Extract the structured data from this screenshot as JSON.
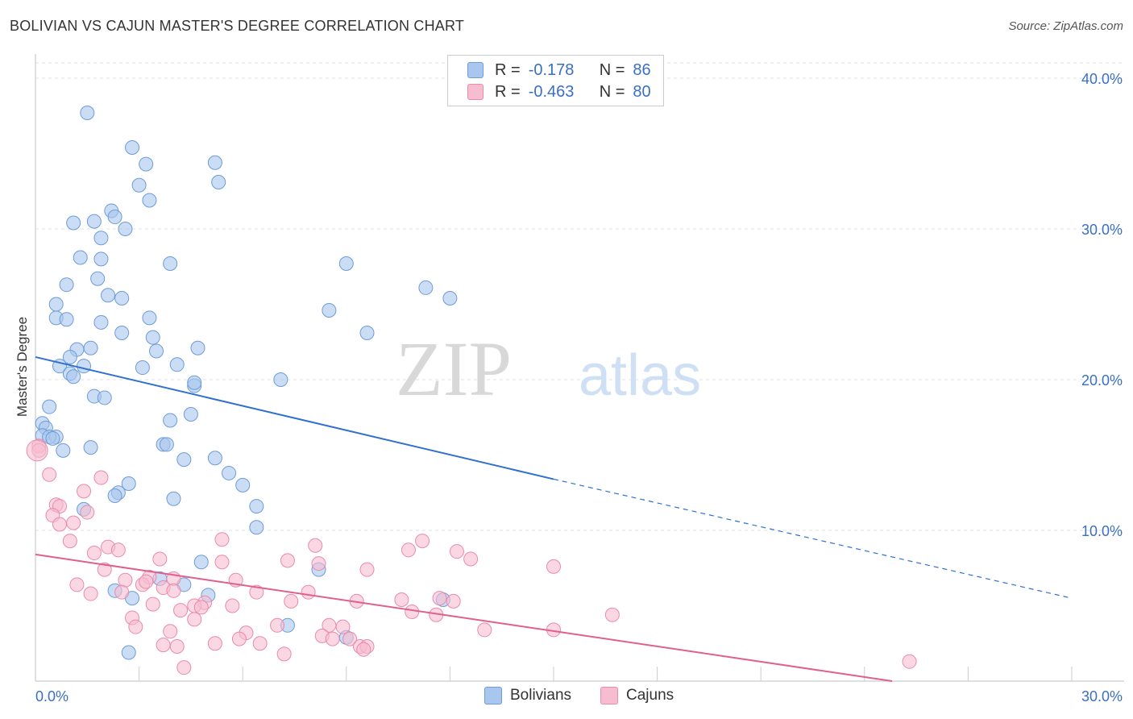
{
  "header": {
    "title": "BOLIVIAN VS CAJUN MASTER'S DEGREE CORRELATION CHART",
    "source": "Source: ZipAtlas.com"
  },
  "legend": {
    "r_label": "R =",
    "n_label": "N =",
    "bolivians": {
      "r": "-0.178",
      "n": "86"
    },
    "cajuns": {
      "r": "-0.463",
      "n": "80"
    }
  },
  "bottom_legend": {
    "bolivians": "Bolivians",
    "cajuns": "Cajuns"
  },
  "watermark": {
    "zip": "ZIP",
    "atlas": "atlas"
  },
  "colors": {
    "bolivians_fill": "#a9c7ee",
    "bolivians_stroke": "#6d9cd8",
    "bolivians_line": "#2f70d0",
    "cajuns_fill": "#f6bcd0",
    "cajuns_stroke": "#e98bab",
    "cajuns_line": "#e0608c",
    "tick_label": "#3a6fc4",
    "grid": "#e0e0e0"
  },
  "chart_data": {
    "type": "scatter",
    "title": "BOLIVIAN VS CAJUN MASTER'S DEGREE CORRELATION CHART",
    "xlabel": "",
    "ylabel": "Master's Degree",
    "xlim": [
      0,
      30
    ],
    "ylim": [
      0,
      40
    ],
    "x_tick_labels": [
      "0.0%",
      "30.0%"
    ],
    "y_ticks": [
      10,
      20,
      30,
      40
    ],
    "y_tick_labels": [
      "10.0%",
      "20.0%",
      "30.0%",
      "40.0%"
    ],
    "grid": true,
    "legend_placement": "top-center",
    "series": [
      {
        "name": "Bolivians",
        "trend": {
          "x": [
            0,
            15
          ],
          "y": [
            21.5,
            13.4
          ],
          "dashed_to": [
            30,
            5.5
          ]
        },
        "points": [
          [
            1.5,
            37.7
          ],
          [
            2.8,
            35.4
          ],
          [
            3.2,
            34.3
          ],
          [
            5.2,
            34.4
          ],
          [
            3.0,
            32.9
          ],
          [
            5.3,
            33.1
          ],
          [
            3.3,
            31.9
          ],
          [
            2.2,
            31.2
          ],
          [
            1.1,
            30.4
          ],
          [
            1.7,
            30.5
          ],
          [
            2.3,
            30.8
          ],
          [
            2.6,
            30.0
          ],
          [
            1.3,
            28.1
          ],
          [
            1.9,
            29.4
          ],
          [
            1.9,
            28.0
          ],
          [
            3.9,
            27.7
          ],
          [
            9.0,
            27.7
          ],
          [
            0.9,
            26.3
          ],
          [
            1.8,
            26.7
          ],
          [
            2.1,
            25.6
          ],
          [
            2.5,
            25.4
          ],
          [
            0.6,
            25.0
          ],
          [
            11.3,
            26.1
          ],
          [
            12.0,
            25.4
          ],
          [
            0.6,
            24.1
          ],
          [
            0.9,
            24.0
          ],
          [
            1.9,
            23.8
          ],
          [
            3.3,
            24.1
          ],
          [
            8.5,
            24.6
          ],
          [
            2.5,
            23.1
          ],
          [
            3.4,
            22.8
          ],
          [
            9.6,
            23.1
          ],
          [
            1.2,
            22.0
          ],
          [
            1.6,
            22.1
          ],
          [
            3.5,
            21.9
          ],
          [
            4.7,
            22.1
          ],
          [
            1.0,
            21.5
          ],
          [
            0.7,
            20.9
          ],
          [
            1.4,
            20.9
          ],
          [
            4.1,
            21.0
          ],
          [
            3.1,
            20.8
          ],
          [
            1.0,
            20.4
          ],
          [
            1.1,
            20.2
          ],
          [
            4.6,
            19.6
          ],
          [
            4.6,
            19.8
          ],
          [
            7.1,
            20.0
          ],
          [
            1.7,
            18.9
          ],
          [
            2.0,
            18.8
          ],
          [
            0.4,
            18.2
          ],
          [
            4.5,
            17.7
          ],
          [
            3.9,
            17.3
          ],
          [
            0.2,
            17.1
          ],
          [
            0.3,
            16.8
          ],
          [
            0.2,
            16.3
          ],
          [
            0.6,
            16.2
          ],
          [
            0.4,
            16.2
          ],
          [
            0.5,
            16.1
          ],
          [
            3.7,
            15.7
          ],
          [
            3.8,
            15.7
          ],
          [
            1.6,
            15.5
          ],
          [
            0.8,
            15.3
          ],
          [
            4.3,
            14.7
          ],
          [
            5.2,
            14.8
          ],
          [
            5.6,
            13.8
          ],
          [
            6.0,
            13.0
          ],
          [
            2.7,
            13.1
          ],
          [
            2.4,
            12.5
          ],
          [
            2.3,
            12.3
          ],
          [
            4.0,
            12.1
          ],
          [
            6.4,
            11.6
          ],
          [
            1.4,
            11.4
          ],
          [
            6.4,
            10.2
          ],
          [
            4.8,
            7.9
          ],
          [
            8.2,
            7.4
          ],
          [
            3.6,
            6.8
          ],
          [
            4.3,
            6.4
          ],
          [
            2.3,
            6.0
          ],
          [
            2.8,
            5.5
          ],
          [
            5.0,
            5.7
          ],
          [
            11.8,
            5.4
          ],
          [
            7.3,
            3.7
          ],
          [
            9.0,
            2.9
          ],
          [
            2.7,
            1.9
          ]
        ]
      },
      {
        "name": "Cajuns",
        "trend": {
          "x": [
            0,
            24.8
          ],
          "y": [
            8.4,
            0
          ]
        },
        "points": [
          [
            0.1,
            15.6
          ],
          [
            0.1,
            15.3
          ],
          [
            0.4,
            13.7
          ],
          [
            1.9,
            13.5
          ],
          [
            1.4,
            12.6
          ],
          [
            0.6,
            11.7
          ],
          [
            0.7,
            11.6
          ],
          [
            1.5,
            11.2
          ],
          [
            0.5,
            11.0
          ],
          [
            0.7,
            10.4
          ],
          [
            1.1,
            10.5
          ],
          [
            1.0,
            9.3
          ],
          [
            5.4,
            9.4
          ],
          [
            8.1,
            9.0
          ],
          [
            11.2,
            9.3
          ],
          [
            2.1,
            8.9
          ],
          [
            2.4,
            8.7
          ],
          [
            1.7,
            8.5
          ],
          [
            10.8,
            8.7
          ],
          [
            12.2,
            8.6
          ],
          [
            12.6,
            8.1
          ],
          [
            3.6,
            8.1
          ],
          [
            5.4,
            7.9
          ],
          [
            7.3,
            8.0
          ],
          [
            15.0,
            7.6
          ],
          [
            2.0,
            7.4
          ],
          [
            9.6,
            7.4
          ],
          [
            8.2,
            7.8
          ],
          [
            3.3,
            6.9
          ],
          [
            2.6,
            6.7
          ],
          [
            4.0,
            6.8
          ],
          [
            5.8,
            6.7
          ],
          [
            3.1,
            6.4
          ],
          [
            3.2,
            6.6
          ],
          [
            1.2,
            6.4
          ],
          [
            1.6,
            5.8
          ],
          [
            2.5,
            5.9
          ],
          [
            3.7,
            6.2
          ],
          [
            4.0,
            6.0
          ],
          [
            6.4,
            5.9
          ],
          [
            7.9,
            5.9
          ],
          [
            10.6,
            5.4
          ],
          [
            11.7,
            5.5
          ],
          [
            12.1,
            5.3
          ],
          [
            7.4,
            5.3
          ],
          [
            9.3,
            5.3
          ],
          [
            4.9,
            5.2
          ],
          [
            3.4,
            5.1
          ],
          [
            4.6,
            5.0
          ],
          [
            4.8,
            4.9
          ],
          [
            5.7,
            5.0
          ],
          [
            10.9,
            4.6
          ],
          [
            11.6,
            4.4
          ],
          [
            16.7,
            4.4
          ],
          [
            2.8,
            4.2
          ],
          [
            4.6,
            4.1
          ],
          [
            2.9,
            3.6
          ],
          [
            4.2,
            4.7
          ],
          [
            6.1,
            3.2
          ],
          [
            7.0,
            3.7
          ],
          [
            8.5,
            3.7
          ],
          [
            8.9,
            3.6
          ],
          [
            13.0,
            3.4
          ],
          [
            15.0,
            3.4
          ],
          [
            3.9,
            3.3
          ],
          [
            5.9,
            2.8
          ],
          [
            8.3,
            3.0
          ],
          [
            8.6,
            2.8
          ],
          [
            9.1,
            2.8
          ],
          [
            9.4,
            2.3
          ],
          [
            9.6,
            2.3
          ],
          [
            6.5,
            2.5
          ],
          [
            5.2,
            2.5
          ],
          [
            3.7,
            2.4
          ],
          [
            4.1,
            2.3
          ],
          [
            7.2,
            1.8
          ],
          [
            9.5,
            2.1
          ],
          [
            4.3,
            0.9
          ],
          [
            25.3,
            1.3
          ]
        ]
      }
    ]
  }
}
